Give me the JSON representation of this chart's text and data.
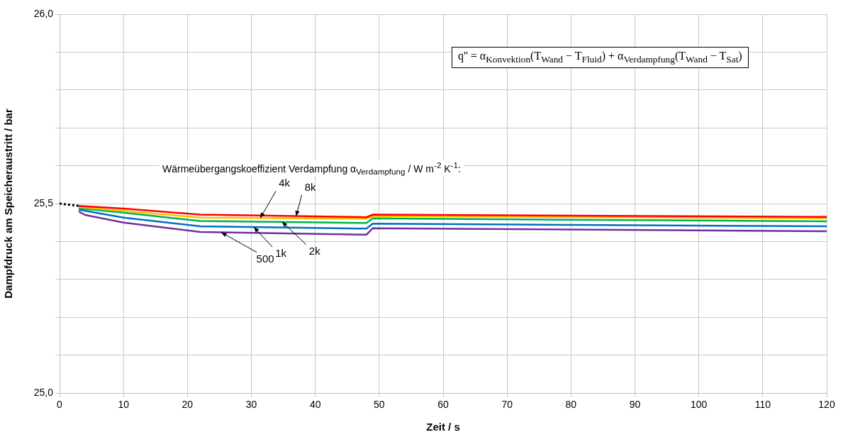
{
  "chart_data": {
    "type": "line",
    "xlabel": "Zeit / s",
    "ylabel": "Dampfdruck am Speicheraustritt / bar",
    "xlim": [
      0,
      120
    ],
    "xticks": [
      0,
      10,
      20,
      30,
      40,
      50,
      60,
      70,
      80,
      90,
      100,
      110,
      120
    ],
    "ylim": [
      25.0,
      26.0
    ],
    "yticks": [
      {
        "value": 25.0,
        "label": "25,0"
      },
      {
        "value": 25.1,
        "label": null
      },
      {
        "value": 25.2,
        "label": null
      },
      {
        "value": 25.3,
        "label": null
      },
      {
        "value": 25.4,
        "label": null
      },
      {
        "value": 25.5,
        "label": "25,5"
      },
      {
        "value": 25.6,
        "label": null
      },
      {
        "value": 25.7,
        "label": null
      },
      {
        "value": 25.8,
        "label": null
      },
      {
        "value": 25.9,
        "label": null
      },
      {
        "value": 26.0,
        "label": "26,0"
      }
    ],
    "grid": true,
    "legend": false,
    "marker": "none",
    "series": [
      {
        "color": "#000000",
        "line_style": "dotted",
        "x": [
          0,
          3
        ],
        "values": [
          25.5,
          25.494
        ]
      },
      {
        "color": "#ff0000",
        "x": [
          3,
          10,
          22,
          48,
          49,
          120
        ],
        "values": [
          25.494,
          25.487,
          25.471,
          25.464,
          25.471,
          25.465
        ]
      },
      {
        "color": "#ffc000",
        "x": [
          3,
          10,
          22,
          48,
          49,
          120
        ],
        "values": [
          25.491,
          25.481,
          25.463,
          25.46,
          25.467,
          25.461
        ]
      },
      {
        "color": "#00b050",
        "x": [
          3,
          10,
          22,
          48,
          49,
          120
        ],
        "values": [
          25.488,
          25.476,
          25.454,
          25.449,
          25.461,
          25.453
        ]
      },
      {
        "color": "#0070c0",
        "x": [
          3,
          10,
          22,
          48,
          49,
          120
        ],
        "values": [
          25.484,
          25.463,
          25.44,
          25.434,
          25.447,
          25.44
        ]
      },
      {
        "color": "#7030a0",
        "x": [
          3,
          4,
          10,
          22,
          48,
          49,
          120
        ],
        "values": [
          25.479,
          25.47,
          25.45,
          25.425,
          25.418,
          25.435,
          25.427
        ]
      }
    ],
    "annotations": [
      "q'' = α$_{Konvektion}$(T$_{Wand}$ − T$_{Fluid}$) + α$_{Verdampfung}$(T$_{Wand}$ − T$_{Sat}$)",
      "Wärmeübergangskoeffizient Verdampfung  α$_{Verdampfung}$ / W m$^{-2}$ K$^{-1}$:",
      {
        "text": "8k",
        "x": 37,
        "y": 25.467
      },
      {
        "text": "4k",
        "x": 31.4,
        "y": 25.462
      },
      {
        "text": "2k",
        "x": 34.8,
        "y": 25.452
      },
      {
        "text": "1k",
        "x": 30.4,
        "y": 25.438
      },
      {
        "text": "500",
        "x": 25.3,
        "y": 25.424
      }
    ]
  }
}
